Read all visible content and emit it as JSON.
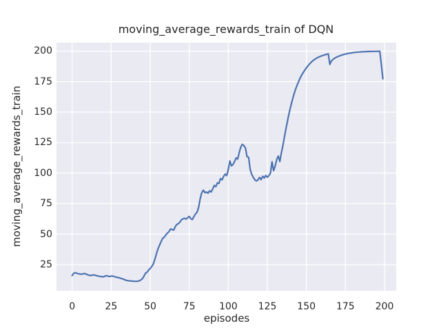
{
  "chart_data": {
    "type": "line",
    "title": "moving_average_rewards_train of DQN",
    "xlabel": "episodes",
    "ylabel": "moving_average_rewards_train",
    "x_ticks": [
      0,
      25,
      50,
      75,
      100,
      125,
      150,
      175,
      200
    ],
    "y_ticks": [
      25,
      50,
      75,
      100,
      125,
      150,
      175,
      200
    ],
    "xlim": [
      -10,
      207.5
    ],
    "ylim": [
      3.5,
      207
    ],
    "grid": true,
    "legend_position": "none",
    "x_start": 0,
    "x_step": 1,
    "colors": {
      "line": "#4C72B0",
      "plot_bg": "#EAEAF2",
      "grid": "#FFFFFF",
      "figure_bg": "#FFFFFF",
      "text": "#262626"
    },
    "series": [
      {
        "name": "DQN",
        "color": "#4C72B0",
        "values": [
          16.0,
          17.8,
          18.4,
          17.9,
          17.5,
          17.3,
          17.1,
          17.4,
          17.7,
          17.1,
          16.7,
          16.2,
          16.0,
          16.4,
          16.6,
          16.1,
          15.8,
          15.5,
          15.3,
          15.1,
          15.0,
          15.5,
          15.9,
          15.5,
          15.2,
          15.5,
          15.6,
          15.1,
          14.8,
          14.5,
          14.2,
          13.8,
          13.4,
          12.9,
          12.4,
          12.0,
          11.8,
          11.6,
          11.5,
          11.4,
          11.3,
          11.3,
          11.4,
          11.6,
          12.4,
          13.5,
          15.5,
          18.0,
          18.8,
          20.5,
          21.8,
          23.5,
          25.5,
          29.5,
          34.0,
          38.0,
          41.0,
          44.0,
          46.5,
          47.5,
          49.4,
          50.8,
          52.0,
          54.2,
          53.8,
          53.2,
          56.0,
          57.9,
          58.5,
          59.8,
          61.7,
          62.6,
          62.9,
          62.3,
          63.5,
          64.5,
          62.5,
          62.0,
          64.5,
          66.5,
          68.0,
          72.0,
          79.0,
          84.0,
          86.0,
          84.0,
          84.5,
          83.5,
          85.5,
          84.5,
          87.0,
          89.9,
          88.9,
          92.0,
          91.5,
          95.5,
          94.5,
          97.3,
          99.2,
          98.0,
          103.0,
          110.0,
          106.0,
          107.0,
          109.5,
          112.5,
          111.5,
          117.0,
          121.5,
          123.6,
          122.5,
          120.5,
          113.5,
          113.0,
          103.0,
          99.0,
          96.5,
          94.5,
          93.5,
          94.5,
          96.5,
          94.6,
          97.4,
          96.0,
          98.1,
          96.6,
          98.1,
          100.0,
          109.3,
          102.0,
          105.6,
          111.2,
          114.0,
          109.5,
          116.8,
          123.0,
          130.0,
          137.0,
          143.5,
          149.5,
          155.0,
          160.0,
          164.5,
          168.5,
          172.0,
          175.0,
          178.0,
          180.5,
          182.5,
          184.5,
          186.3,
          188.0,
          189.5,
          190.8,
          192.0,
          193.0,
          193.8,
          194.6,
          195.2,
          195.8,
          196.3,
          196.7,
          197.1,
          197.5,
          197.8,
          189.2,
          192.0,
          193.2,
          194.2,
          194.9,
          195.5,
          196.0,
          196.5,
          196.9,
          197.3,
          197.6,
          197.9,
          198.2,
          198.4,
          198.6,
          198.8,
          199.0,
          199.1,
          199.2,
          199.3,
          199.4,
          199.5,
          199.55,
          199.6,
          199.65,
          199.7,
          199.75,
          199.78,
          199.8,
          199.83,
          199.85,
          199.87,
          199.9,
          188.5,
          177.3
        ]
      }
    ]
  }
}
